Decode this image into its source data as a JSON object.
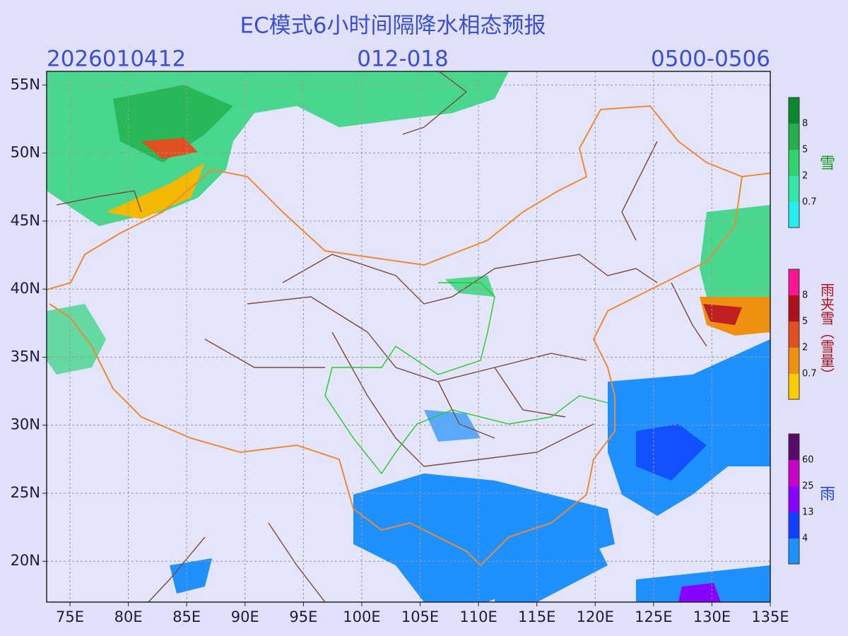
{
  "map": {
    "title": "EC模式6小时间隔降水相态预报",
    "init_time": "2026010412",
    "forecast_hours": "012-018",
    "valid_time": "0500-0506",
    "lon_range": [
      73,
      135
    ],
    "lat_range": [
      17,
      56
    ],
    "lon_ticks": [
      {
        "value": 75,
        "label": "75E"
      },
      {
        "value": 80,
        "label": "80E"
      },
      {
        "value": 85,
        "label": "85E"
      },
      {
        "value": 90,
        "label": "90E"
      },
      {
        "value": 95,
        "label": "95E"
      },
      {
        "value": 100,
        "label": "100E"
      },
      {
        "value": 105,
        "label": "105E"
      },
      {
        "value": 110,
        "label": "110E"
      },
      {
        "value": 115,
        "label": "115E"
      },
      {
        "value": 120,
        "label": "120E"
      },
      {
        "value": 125,
        "label": "125E"
      },
      {
        "value": 130,
        "label": "130E"
      },
      {
        "value": 135,
        "label": "135E"
      }
    ],
    "lat_ticks": [
      {
        "value": 20,
        "label": "20N"
      },
      {
        "value": 25,
        "label": "25N"
      },
      {
        "value": 30,
        "label": "30N"
      },
      {
        "value": 35,
        "label": "35N"
      },
      {
        "value": 40,
        "label": "40N"
      },
      {
        "value": 45,
        "label": "45N"
      },
      {
        "value": 50,
        "label": "50N"
      },
      {
        "value": 55,
        "label": "55N"
      }
    ],
    "legends": [
      {
        "label": "雪",
        "levels": [
          8,
          5,
          2,
          0.7
        ]
      },
      {
        "label": "雨夹雪（雪量）",
        "levels": [
          8,
          5,
          2,
          0.7
        ]
      },
      {
        "label": "雨",
        "levels": [
          60,
          25,
          13,
          4
        ]
      }
    ]
  }
}
